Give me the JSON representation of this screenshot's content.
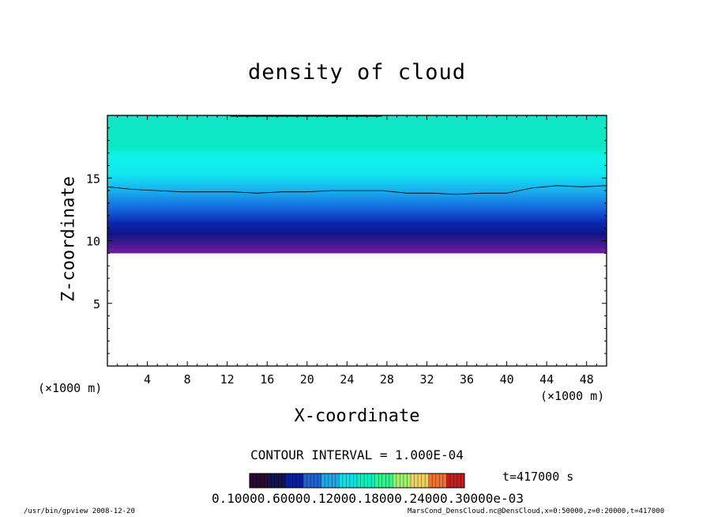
{
  "chart_data": {
    "type": "heatmap",
    "title": "density of cloud",
    "xlabel": "X-coordinate",
    "ylabel": "Z-coordinate",
    "x_unit": "(×1000 m)",
    "z_unit": "(×1000 m)",
    "xlim": [
      0,
      50
    ],
    "ylim": [
      0,
      20
    ],
    "x_ticks": [
      4,
      8,
      12,
      16,
      20,
      24,
      28,
      32,
      36,
      40,
      44,
      48
    ],
    "y_ticks": [
      5,
      10,
      15
    ],
    "cloud_base": 9.0,
    "contour_line_height": [
      14.3,
      14.1,
      14.0,
      13.9,
      13.9,
      13.9,
      13.8,
      13.9,
      13.9,
      14.0,
      14.0,
      14.0,
      13.8,
      13.8,
      13.7,
      13.8,
      13.8,
      14.2,
      14.4,
      14.3,
      14.4
    ],
    "contour_interval": "CONTOUR INTERVAL = 1.000E-04",
    "time": "t=417000 s",
    "colorbar_labels": "0.10000.60000.12000.18000.24000.30000e-03",
    "colors": [
      "#2a0a30",
      "#12124e",
      "#0a1fa0",
      "#1f63d0",
      "#20a8e6",
      "#0fe0e6",
      "#08f0c0",
      "#30f58c",
      "#a0f070",
      "#f0d060",
      "#f07030",
      "#c02020"
    ]
  },
  "footer": {
    "left": "/usr/bin/gpview   2008-12-20",
    "right": "MarsCond_DensCloud.nc@DensCloud,x=0:50000,z=0:20000,t=417000"
  }
}
